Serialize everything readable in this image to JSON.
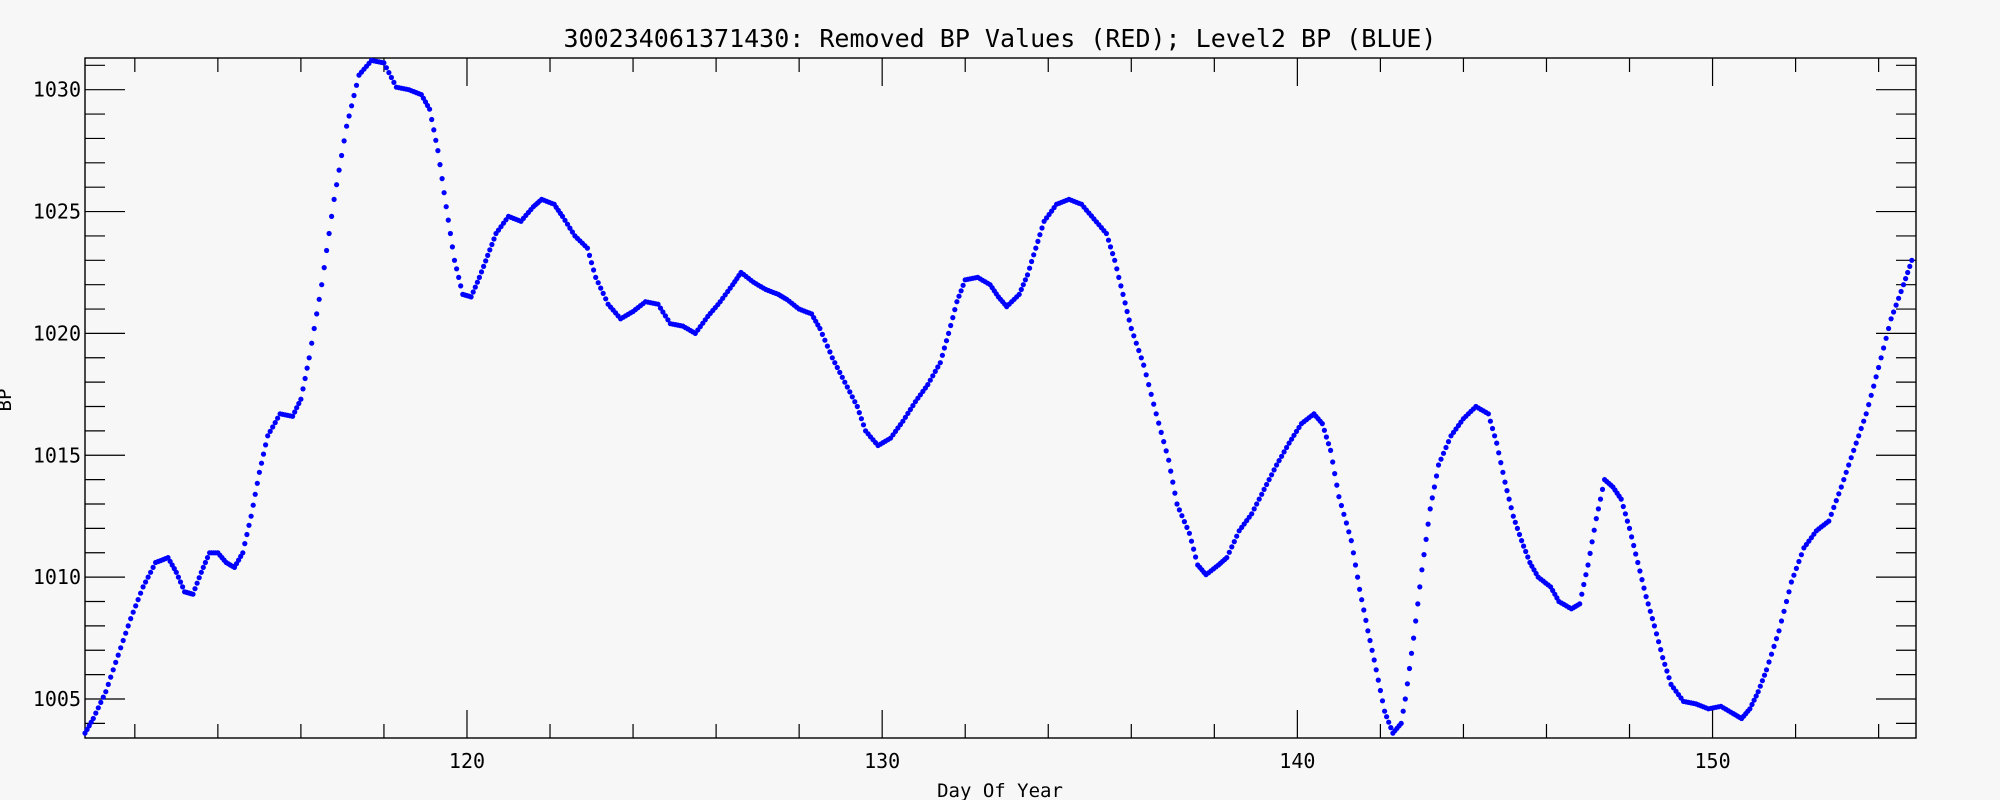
{
  "chart_data": {
    "type": "scatter",
    "title": "300234061371430: Removed BP Values (RED); Level2 BP (BLUE)",
    "xlabel": "Day Of Year",
    "ylabel": "BP",
    "xlim": [
      110.8,
      154.9
    ],
    "ylim": [
      1003.4,
      1031.3
    ],
    "xticks": [
      120,
      130,
      140,
      150
    ],
    "yticks": [
      1005,
      1010,
      1015,
      1020,
      1025,
      1030
    ],
    "grid": false,
    "series": [
      {
        "color": "#0000ff",
        "points": [
          [
            110.8,
            1003.6
          ],
          [
            111.0,
            1004.2
          ],
          [
            111.3,
            1005.3
          ],
          [
            111.6,
            1006.8
          ],
          [
            111.9,
            1008.3
          ],
          [
            112.2,
            1009.6
          ],
          [
            112.5,
            1010.6
          ],
          [
            112.8,
            1010.8
          ],
          [
            113.0,
            1010.2
          ],
          [
            113.2,
            1009.4
          ],
          [
            113.4,
            1009.3
          ],
          [
            113.6,
            1010.2
          ],
          [
            113.8,
            1011.0
          ],
          [
            114.0,
            1011.0
          ],
          [
            114.2,
            1010.6
          ],
          [
            114.4,
            1010.4
          ],
          [
            114.6,
            1011.0
          ],
          [
            114.8,
            1012.5
          ],
          [
            115.0,
            1014.3
          ],
          [
            115.2,
            1015.8
          ],
          [
            115.5,
            1016.7
          ],
          [
            115.8,
            1016.6
          ],
          [
            116.0,
            1017.3
          ],
          [
            116.2,
            1019.0
          ],
          [
            116.5,
            1022.0
          ],
          [
            116.8,
            1025.5
          ],
          [
            117.1,
            1028.5
          ],
          [
            117.4,
            1030.6
          ],
          [
            117.7,
            1031.2
          ],
          [
            118.0,
            1031.1
          ],
          [
            118.3,
            1030.1
          ],
          [
            118.6,
            1030.0
          ],
          [
            118.9,
            1029.8
          ],
          [
            119.1,
            1029.2
          ],
          [
            119.3,
            1027.5
          ],
          [
            119.5,
            1025.2
          ],
          [
            119.7,
            1023.0
          ],
          [
            119.9,
            1021.6
          ],
          [
            120.1,
            1021.5
          ],
          [
            120.3,
            1022.3
          ],
          [
            120.5,
            1023.2
          ],
          [
            120.7,
            1024.1
          ],
          [
            121.0,
            1024.8
          ],
          [
            121.3,
            1024.6
          ],
          [
            121.6,
            1025.2
          ],
          [
            121.8,
            1025.5
          ],
          [
            122.1,
            1025.3
          ],
          [
            122.3,
            1024.8
          ],
          [
            122.6,
            1024.0
          ],
          [
            122.9,
            1023.5
          ],
          [
            123.1,
            1022.3
          ],
          [
            123.4,
            1021.2
          ],
          [
            123.7,
            1020.6
          ],
          [
            124.0,
            1020.9
          ],
          [
            124.3,
            1021.3
          ],
          [
            124.6,
            1021.2
          ],
          [
            124.9,
            1020.4
          ],
          [
            125.2,
            1020.3
          ],
          [
            125.5,
            1020.0
          ],
          [
            125.8,
            1020.7
          ],
          [
            126.1,
            1021.3
          ],
          [
            126.4,
            1022.0
          ],
          [
            126.6,
            1022.5
          ],
          [
            126.9,
            1022.1
          ],
          [
            127.2,
            1021.8
          ],
          [
            127.5,
            1021.6
          ],
          [
            127.7,
            1021.4
          ],
          [
            128.0,
            1021.0
          ],
          [
            128.3,
            1020.8
          ],
          [
            128.5,
            1020.2
          ],
          [
            128.8,
            1019.0
          ],
          [
            129.1,
            1018.0
          ],
          [
            129.4,
            1017.0
          ],
          [
            129.6,
            1016.0
          ],
          [
            129.9,
            1015.4
          ],
          [
            130.2,
            1015.7
          ],
          [
            130.5,
            1016.4
          ],
          [
            130.8,
            1017.2
          ],
          [
            131.1,
            1017.9
          ],
          [
            131.4,
            1018.8
          ],
          [
            131.6,
            1020.0
          ],
          [
            131.8,
            1021.3
          ],
          [
            132.0,
            1022.2
          ],
          [
            132.3,
            1022.3
          ],
          [
            132.6,
            1022.0
          ],
          [
            132.8,
            1021.5
          ],
          [
            133.0,
            1021.1
          ],
          [
            133.3,
            1021.6
          ],
          [
            133.5,
            1022.4
          ],
          [
            133.7,
            1023.5
          ],
          [
            133.9,
            1024.6
          ],
          [
            134.2,
            1025.3
          ],
          [
            134.5,
            1025.5
          ],
          [
            134.8,
            1025.3
          ],
          [
            135.1,
            1024.7
          ],
          [
            135.4,
            1024.1
          ],
          [
            135.6,
            1023.0
          ],
          [
            135.8,
            1021.6
          ],
          [
            136.0,
            1020.2
          ],
          [
            136.3,
            1018.7
          ],
          [
            136.6,
            1016.7
          ],
          [
            136.9,
            1014.8
          ],
          [
            137.1,
            1013.0
          ],
          [
            137.4,
            1011.8
          ],
          [
            137.6,
            1010.5
          ],
          [
            137.8,
            1010.1
          ],
          [
            138.1,
            1010.5
          ],
          [
            138.3,
            1010.8
          ],
          [
            138.6,
            1011.9
          ],
          [
            138.9,
            1012.6
          ],
          [
            139.2,
            1013.6
          ],
          [
            139.5,
            1014.6
          ],
          [
            139.8,
            1015.5
          ],
          [
            140.1,
            1016.3
          ],
          [
            140.4,
            1016.7
          ],
          [
            140.6,
            1016.3
          ],
          [
            140.8,
            1015.2
          ],
          [
            141.0,
            1013.3
          ],
          [
            141.3,
            1011.5
          ],
          [
            141.5,
            1009.5
          ],
          [
            141.7,
            1007.8
          ],
          [
            141.9,
            1006.2
          ],
          [
            142.1,
            1004.5
          ],
          [
            142.3,
            1003.6
          ],
          [
            142.5,
            1004.0
          ],
          [
            142.6,
            1005.0
          ],
          [
            142.8,
            1007.5
          ],
          [
            143.0,
            1010.3
          ],
          [
            143.2,
            1012.8
          ],
          [
            143.4,
            1014.6
          ],
          [
            143.7,
            1015.8
          ],
          [
            144.0,
            1016.5
          ],
          [
            144.3,
            1017.0
          ],
          [
            144.6,
            1016.7
          ],
          [
            144.8,
            1015.5
          ],
          [
            145.0,
            1013.9
          ],
          [
            145.2,
            1012.5
          ],
          [
            145.4,
            1011.5
          ],
          [
            145.6,
            1010.6
          ],
          [
            145.8,
            1010.0
          ],
          [
            146.1,
            1009.6
          ],
          [
            146.3,
            1009.0
          ],
          [
            146.6,
            1008.7
          ],
          [
            146.8,
            1008.9
          ],
          [
            147.0,
            1010.5
          ],
          [
            147.2,
            1012.4
          ],
          [
            147.4,
            1014.0
          ],
          [
            147.6,
            1013.7
          ],
          [
            147.8,
            1013.2
          ],
          [
            148.0,
            1012.0
          ],
          [
            148.2,
            1010.6
          ],
          [
            148.4,
            1009.2
          ],
          [
            148.6,
            1008.0
          ],
          [
            148.8,
            1006.7
          ],
          [
            149.0,
            1005.6
          ],
          [
            149.3,
            1004.9
          ],
          [
            149.6,
            1004.8
          ],
          [
            149.9,
            1004.6
          ],
          [
            150.2,
            1004.7
          ],
          [
            150.5,
            1004.4
          ],
          [
            150.7,
            1004.2
          ],
          [
            150.9,
            1004.6
          ],
          [
            151.1,
            1005.3
          ],
          [
            151.3,
            1006.2
          ],
          [
            151.6,
            1007.8
          ],
          [
            151.9,
            1009.8
          ],
          [
            152.2,
            1011.2
          ],
          [
            152.5,
            1011.9
          ],
          [
            152.8,
            1012.3
          ],
          [
            153.1,
            1013.7
          ],
          [
            153.4,
            1015.2
          ],
          [
            153.7,
            1016.7
          ],
          [
            154.0,
            1018.6
          ],
          [
            154.3,
            1020.6
          ],
          [
            154.6,
            1022.0
          ],
          [
            154.8,
            1023.0
          ]
        ]
      }
    ]
  }
}
